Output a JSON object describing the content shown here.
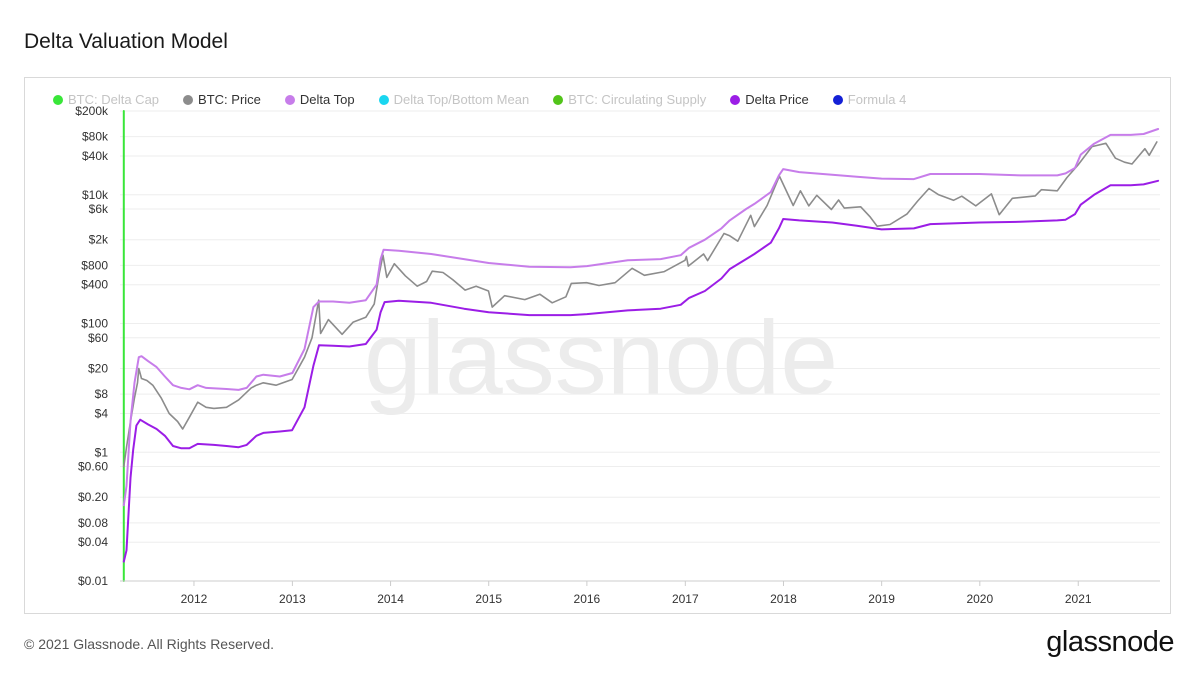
{
  "header": {
    "title": "Delta Valuation Model"
  },
  "footer": {
    "copyright": "© 2021 Glassnode. All Rights Reserved.",
    "logo": "glassnode"
  },
  "watermark": "glassnode",
  "legend": [
    {
      "label": "BTC: Delta Cap",
      "color": "#39e639",
      "active": false
    },
    {
      "label": "BTC: Price",
      "color": "#8c8c8c",
      "active": true
    },
    {
      "label": "Delta Top",
      "color": "#c77dea",
      "active": true
    },
    {
      "label": "Delta Top/Bottom Mean",
      "color": "#1ad6f0",
      "active": false
    },
    {
      "label": "BTC: Circulating Supply",
      "color": "#52c41a",
      "active": false
    },
    {
      "label": "Delta Price",
      "color": "#9b1de6",
      "active": true
    },
    {
      "label": "Formula 4",
      "color": "#1420d6",
      "active": false
    }
  ],
  "chart_data": {
    "type": "line",
    "title": "Delta Valuation Model",
    "y_scale": "log",
    "ylim": [
      0.01,
      200000
    ],
    "xlim": [
      "2011-04-01",
      "2021-11-01"
    ],
    "y_ticks": [
      {
        "v": 200000,
        "label": "$200k"
      },
      {
        "v": 80000,
        "label": "$80k"
      },
      {
        "v": 40000,
        "label": "$40k"
      },
      {
        "v": 10000,
        "label": "$10k"
      },
      {
        "v": 6000,
        "label": "$6k"
      },
      {
        "v": 2000,
        "label": "$2k"
      },
      {
        "v": 800,
        "label": "$800"
      },
      {
        "v": 400,
        "label": "$400"
      },
      {
        "v": 100,
        "label": "$100"
      },
      {
        "v": 60,
        "label": "$60"
      },
      {
        "v": 20,
        "label": "$20"
      },
      {
        "v": 8,
        "label": "$8"
      },
      {
        "v": 4,
        "label": "$4"
      },
      {
        "v": 1,
        "label": "$1"
      },
      {
        "v": 0.6,
        "label": "$0.60"
      },
      {
        "v": 0.2,
        "label": "$0.20"
      },
      {
        "v": 0.08,
        "label": "$0.08"
      },
      {
        "v": 0.04,
        "label": "$0.04"
      },
      {
        "v": 0.01,
        "label": "$0.01"
      }
    ],
    "x_ticks": [
      {
        "v": "2012-01-01",
        "label": "2012"
      },
      {
        "v": "2013-01-01",
        "label": "2013"
      },
      {
        "v": "2014-01-01",
        "label": "2014"
      },
      {
        "v": "2015-01-01",
        "label": "2015"
      },
      {
        "v": "2016-01-01",
        "label": "2016"
      },
      {
        "v": "2017-01-01",
        "label": "2017"
      },
      {
        "v": "2018-01-01",
        "label": "2018"
      },
      {
        "v": "2019-01-01",
        "label": "2019"
      },
      {
        "v": "2020-01-01",
        "label": "2020"
      },
      {
        "v": "2021-01-01",
        "label": "2021"
      }
    ],
    "grid": true,
    "legend_position": "top",
    "series": [
      {
        "name": "BTC: Delta Cap",
        "color": "#39e639",
        "points": [
          [
            "2011-04-15",
            0.01
          ],
          [
            "2011-04-15",
            200000
          ]
        ]
      },
      {
        "name": "BTC: Price",
        "color": "#8c8c8c",
        "points": [
          [
            "2011-04-15",
            0.6
          ],
          [
            "2011-04-25",
            1.2
          ],
          [
            "2011-05-10",
            3
          ],
          [
            "2011-05-25",
            7
          ],
          [
            "2011-06-05",
            12
          ],
          [
            "2011-06-10",
            20
          ],
          [
            "2011-06-20",
            14
          ],
          [
            "2011-07-10",
            13
          ],
          [
            "2011-08-01",
            11
          ],
          [
            "2011-09-01",
            7
          ],
          [
            "2011-10-01",
            4
          ],
          [
            "2011-11-01",
            3
          ],
          [
            "2011-11-20",
            2.3
          ],
          [
            "2011-12-15",
            3.5
          ],
          [
            "2012-01-15",
            6
          ],
          [
            "2012-02-15",
            5
          ],
          [
            "2012-03-15",
            4.8
          ],
          [
            "2012-05-01",
            5
          ],
          [
            "2012-06-15",
            6.5
          ],
          [
            "2012-08-01",
            10
          ],
          [
            "2012-08-20",
            11
          ],
          [
            "2012-09-15",
            12
          ],
          [
            "2012-11-01",
            11
          ],
          [
            "2012-12-31",
            13.5
          ],
          [
            "2013-02-15",
            30
          ],
          [
            "2013-03-15",
            60
          ],
          [
            "2013-04-09",
            230
          ],
          [
            "2013-04-16",
            70
          ],
          [
            "2013-05-15",
            115
          ],
          [
            "2013-07-05",
            68
          ],
          [
            "2013-08-15",
            105
          ],
          [
            "2013-10-01",
            125
          ],
          [
            "2013-11-01",
            200
          ],
          [
            "2013-11-20",
            600
          ],
          [
            "2013-12-04",
            1150
          ],
          [
            "2013-12-18",
            520
          ],
          [
            "2014-01-15",
            850
          ],
          [
            "2014-02-25",
            550
          ],
          [
            "2014-04-10",
            380
          ],
          [
            "2014-05-15",
            450
          ],
          [
            "2014-06-05",
            650
          ],
          [
            "2014-07-15",
            620
          ],
          [
            "2014-08-20",
            480
          ],
          [
            "2014-10-05",
            330
          ],
          [
            "2014-11-15",
            380
          ],
          [
            "2014-12-31",
            320
          ],
          [
            "2015-01-14",
            180
          ],
          [
            "2015-03-01",
            270
          ],
          [
            "2015-05-15",
            235
          ],
          [
            "2015-07-10",
            285
          ],
          [
            "2015-08-25",
            210
          ],
          [
            "2015-10-15",
            260
          ],
          [
            "2015-11-04",
            420
          ],
          [
            "2015-12-31",
            430
          ],
          [
            "2016-02-15",
            390
          ],
          [
            "2016-04-15",
            430
          ],
          [
            "2016-06-17",
            720
          ],
          [
            "2016-08-02",
            560
          ],
          [
            "2016-10-15",
            640
          ],
          [
            "2016-12-31",
            960
          ],
          [
            "2017-01-05",
            1100
          ],
          [
            "2017-01-12",
            780
          ],
          [
            "2017-03-10",
            1200
          ],
          [
            "2017-03-25",
            950
          ],
          [
            "2017-05-25",
            2500
          ],
          [
            "2017-06-15",
            2300
          ],
          [
            "2017-07-15",
            1900
          ],
          [
            "2017-09-01",
            4800
          ],
          [
            "2017-09-15",
            3200
          ],
          [
            "2017-11-01",
            6800
          ],
          [
            "2017-12-17",
            19500
          ],
          [
            "2018-02-06",
            6800
          ],
          [
            "2018-03-05",
            11500
          ],
          [
            "2018-04-05",
            6700
          ],
          [
            "2018-05-05",
            9800
          ],
          [
            "2018-06-28",
            5900
          ],
          [
            "2018-07-25",
            8300
          ],
          [
            "2018-08-15",
            6200
          ],
          [
            "2018-10-15",
            6500
          ],
          [
            "2018-11-20",
            4500
          ],
          [
            "2018-12-15",
            3250
          ],
          [
            "2019-02-01",
            3450
          ],
          [
            "2019-04-05",
            5000
          ],
          [
            "2019-05-15",
            8000
          ],
          [
            "2019-06-26",
            12500
          ],
          [
            "2019-08-01",
            10000
          ],
          [
            "2019-09-25",
            8200
          ],
          [
            "2019-10-26",
            9500
          ],
          [
            "2019-12-17",
            6700
          ],
          [
            "2020-02-13",
            10300
          ],
          [
            "2020-03-13",
            4900
          ],
          [
            "2020-05-01",
            8800
          ],
          [
            "2020-07-25",
            9600
          ],
          [
            "2020-08-17",
            12000
          ],
          [
            "2020-10-15",
            11500
          ],
          [
            "2020-11-20",
            18500
          ],
          [
            "2020-12-31",
            29000
          ],
          [
            "2021-02-21",
            56000
          ],
          [
            "2021-04-14",
            63000
          ],
          [
            "2021-05-19",
            37000
          ],
          [
            "2021-06-22",
            32000
          ],
          [
            "2021-07-20",
            30000
          ],
          [
            "2021-09-06",
            52000
          ],
          [
            "2021-09-22",
            41000
          ],
          [
            "2021-10-20",
            66000
          ]
        ]
      },
      {
        "name": "Delta Top",
        "color": "#c77dea",
        "points": [
          [
            "2011-04-15",
            0.15
          ],
          [
            "2011-04-25",
            0.3
          ],
          [
            "2011-05-10",
            3
          ],
          [
            "2011-05-25",
            12
          ],
          [
            "2011-06-10",
            30
          ],
          [
            "2011-06-20",
            31
          ],
          [
            "2011-07-15",
            26
          ],
          [
            "2011-08-15",
            21
          ],
          [
            "2011-09-15",
            15
          ],
          [
            "2011-10-15",
            11
          ],
          [
            "2011-11-15",
            10
          ],
          [
            "2011-12-15",
            9.5
          ],
          [
            "2012-01-15",
            11
          ],
          [
            "2012-02-15",
            10
          ],
          [
            "2012-05-01",
            9.6
          ],
          [
            "2012-06-15",
            9.3
          ],
          [
            "2012-07-15",
            10
          ],
          [
            "2012-08-20",
            15
          ],
          [
            "2012-09-15",
            16
          ],
          [
            "2012-11-15",
            15
          ],
          [
            "2013-01-01",
            17
          ],
          [
            "2013-02-15",
            40
          ],
          [
            "2013-03-20",
            180
          ],
          [
            "2013-04-10",
            220
          ],
          [
            "2013-06-01",
            220
          ],
          [
            "2013-08-01",
            210
          ],
          [
            "2013-10-01",
            230
          ],
          [
            "2013-11-10",
            400
          ],
          [
            "2013-11-25",
            1000
          ],
          [
            "2013-12-06",
            1400
          ],
          [
            "2014-02-01",
            1350
          ],
          [
            "2014-06-01",
            1200
          ],
          [
            "2014-10-01",
            1000
          ],
          [
            "2015-01-01",
            870
          ],
          [
            "2015-06-01",
            760
          ],
          [
            "2015-11-01",
            750
          ],
          [
            "2016-01-01",
            780
          ],
          [
            "2016-06-01",
            960
          ],
          [
            "2016-10-01",
            1000
          ],
          [
            "2016-12-15",
            1150
          ],
          [
            "2017-01-15",
            1500
          ],
          [
            "2017-03-15",
            2000
          ],
          [
            "2017-05-15",
            3000
          ],
          [
            "2017-06-15",
            4000
          ],
          [
            "2017-08-15",
            6000
          ],
          [
            "2017-09-15",
            7200
          ],
          [
            "2017-11-15",
            11000
          ],
          [
            "2017-12-15",
            20000
          ],
          [
            "2017-12-31",
            25000
          ],
          [
            "2018-03-01",
            22500
          ],
          [
            "2018-07-01",
            20500
          ],
          [
            "2018-10-01",
            19000
          ],
          [
            "2019-01-01",
            17800
          ],
          [
            "2019-05-01",
            17500
          ],
          [
            "2019-07-01",
            21000
          ],
          [
            "2019-12-31",
            21000
          ],
          [
            "2020-06-01",
            20000
          ],
          [
            "2020-10-15",
            20000
          ],
          [
            "2020-11-15",
            21500
          ],
          [
            "2020-12-20",
            26000
          ],
          [
            "2021-01-10",
            42000
          ],
          [
            "2021-03-01",
            62000
          ],
          [
            "2021-05-01",
            85000
          ],
          [
            "2021-07-15",
            85000
          ],
          [
            "2021-09-01",
            88000
          ],
          [
            "2021-10-25",
            105000
          ]
        ]
      },
      {
        "name": "Delta Price",
        "color": "#9b1de6",
        "points": [
          [
            "2011-04-15",
            0.02
          ],
          [
            "2011-04-25",
            0.03
          ],
          [
            "2011-05-10",
            0.4
          ],
          [
            "2011-05-20",
            1.1
          ],
          [
            "2011-06-01",
            2.6
          ],
          [
            "2011-06-15",
            3.2
          ],
          [
            "2011-07-15",
            2.7
          ],
          [
            "2011-08-15",
            2.3
          ],
          [
            "2011-09-15",
            1.8
          ],
          [
            "2011-10-15",
            1.25
          ],
          [
            "2011-11-15",
            1.15
          ],
          [
            "2011-12-15",
            1.15
          ],
          [
            "2012-01-15",
            1.35
          ],
          [
            "2012-03-15",
            1.3
          ],
          [
            "2012-05-01",
            1.25
          ],
          [
            "2012-06-15",
            1.2
          ],
          [
            "2012-07-15",
            1.3
          ],
          [
            "2012-08-20",
            1.8
          ],
          [
            "2012-09-15",
            2
          ],
          [
            "2012-11-15",
            2.1
          ],
          [
            "2012-12-31",
            2.2
          ],
          [
            "2013-02-15",
            5
          ],
          [
            "2013-03-20",
            22
          ],
          [
            "2013-04-10",
            46
          ],
          [
            "2013-06-01",
            45
          ],
          [
            "2013-08-01",
            44
          ],
          [
            "2013-10-01",
            48
          ],
          [
            "2013-11-10",
            80
          ],
          [
            "2013-11-25",
            150
          ],
          [
            "2013-12-10",
            215
          ],
          [
            "2014-02-01",
            225
          ],
          [
            "2014-06-01",
            210
          ],
          [
            "2014-10-01",
            170
          ],
          [
            "2015-01-01",
            150
          ],
          [
            "2015-06-01",
            135
          ],
          [
            "2015-11-01",
            135
          ],
          [
            "2016-01-01",
            140
          ],
          [
            "2016-06-01",
            160
          ],
          [
            "2016-10-01",
            170
          ],
          [
            "2016-12-15",
            195
          ],
          [
            "2017-01-15",
            250
          ],
          [
            "2017-03-15",
            320
          ],
          [
            "2017-05-15",
            500
          ],
          [
            "2017-06-15",
            700
          ],
          [
            "2017-08-15",
            1000
          ],
          [
            "2017-09-15",
            1200
          ],
          [
            "2017-11-15",
            1800
          ],
          [
            "2017-12-15",
            3000
          ],
          [
            "2017-12-31",
            4200
          ],
          [
            "2018-03-01",
            4000
          ],
          [
            "2018-07-01",
            3700
          ],
          [
            "2018-10-01",
            3300
          ],
          [
            "2019-01-01",
            2900
          ],
          [
            "2019-05-01",
            3000
          ],
          [
            "2019-07-01",
            3500
          ],
          [
            "2019-12-31",
            3700
          ],
          [
            "2020-06-01",
            3800
          ],
          [
            "2020-10-15",
            4000
          ],
          [
            "2020-11-15",
            4100
          ],
          [
            "2020-12-20",
            5000
          ],
          [
            "2021-01-10",
            7000
          ],
          [
            "2021-03-01",
            10000
          ],
          [
            "2021-05-01",
            14000
          ],
          [
            "2021-07-15",
            14000
          ],
          [
            "2021-09-01",
            14500
          ],
          [
            "2021-10-25",
            16500
          ]
        ]
      }
    ]
  }
}
